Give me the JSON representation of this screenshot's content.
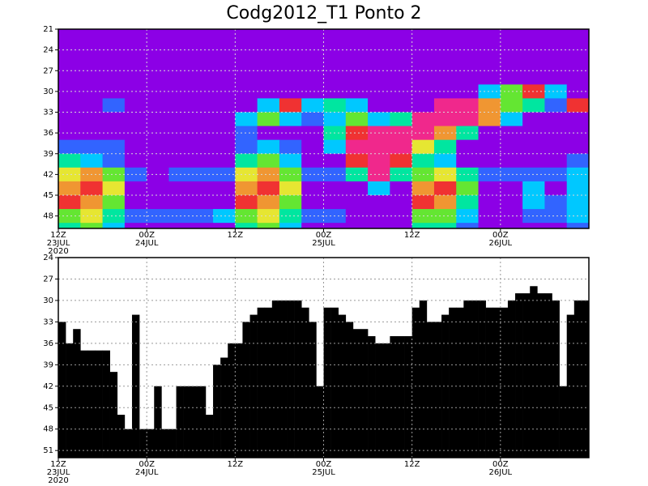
{
  "chart_data": [
    {
      "type": "heatmap",
      "title": "Codg2012_T1 Ponto 2",
      "categories": [
        "12Z\n23JUL\n2020",
        null,
        null,
        null,
        "00Z\n24JUL",
        null,
        null,
        null,
        "12Z",
        null,
        null,
        null,
        "00Z\n25JUL",
        null,
        null,
        null,
        "12Z",
        null,
        null,
        null,
        "00Z\n26JUL",
        null,
        null,
        null
      ],
      "y": [
        21,
        23,
        25,
        27,
        29,
        31,
        33,
        35,
        37,
        39,
        41,
        43,
        45,
        47,
        49
      ],
      "z": [
        [
          0,
          0,
          0,
          0,
          0,
          0,
          0,
          0,
          0,
          0,
          0,
          0,
          0,
          0,
          0,
          0,
          0,
          0,
          0,
          0,
          0,
          0,
          0,
          0
        ],
        [
          0,
          0,
          0,
          0,
          0,
          0,
          0,
          0,
          0,
          0,
          0,
          0,
          0,
          0,
          0,
          0,
          0,
          0,
          0,
          0,
          0,
          0,
          0,
          0
        ],
        [
          0,
          0,
          0,
          0,
          0,
          0,
          0,
          0,
          0,
          0,
          0,
          0,
          0,
          0,
          0,
          0,
          0,
          0,
          0,
          0,
          0,
          0,
          0,
          0
        ],
        [
          0,
          0,
          0,
          0,
          0,
          0,
          0,
          0,
          0,
          0,
          0,
          0,
          0,
          0,
          0,
          0,
          0,
          0,
          0,
          0,
          0,
          0,
          0,
          0
        ],
        [
          0,
          0,
          0,
          0,
          0,
          0,
          0,
          0,
          0,
          0,
          0,
          0,
          0,
          0,
          0,
          0,
          0,
          0,
          0,
          2,
          4,
          7,
          2,
          0
        ],
        [
          0,
          0,
          1,
          0,
          0,
          0,
          0,
          0,
          0,
          2,
          7,
          2,
          3,
          2,
          0,
          0,
          0,
          8,
          8,
          6,
          4,
          3,
          1,
          7
        ],
        [
          0,
          0,
          0,
          0,
          0,
          0,
          0,
          0,
          2,
          4,
          2,
          1,
          2,
          4,
          2,
          3,
          8,
          8,
          8,
          6,
          2,
          0,
          0,
          0
        ],
        [
          0,
          0,
          0,
          0,
          0,
          0,
          0,
          0,
          1,
          0,
          0,
          0,
          3,
          7,
          8,
          8,
          8,
          6,
          3,
          0,
          0,
          0,
          0,
          0
        ],
        [
          1,
          1,
          1,
          0,
          0,
          0,
          0,
          0,
          1,
          2,
          1,
          0,
          2,
          8,
          8,
          8,
          5,
          3,
          0,
          0,
          0,
          0,
          0,
          0
        ],
        [
          3,
          2,
          1,
          0,
          0,
          0,
          0,
          0,
          3,
          4,
          2,
          0,
          0,
          7,
          8,
          7,
          3,
          2,
          0,
          0,
          0,
          0,
          0,
          1
        ],
        [
          5,
          6,
          4,
          1,
          0,
          1,
          1,
          1,
          5,
          6,
          4,
          1,
          1,
          3,
          8,
          3,
          4,
          5,
          3,
          1,
          1,
          1,
          1,
          2
        ],
        [
          6,
          7,
          5,
          0,
          0,
          0,
          0,
          0,
          6,
          7,
          5,
          0,
          0,
          0,
          2,
          0,
          6,
          7,
          4,
          0,
          0,
          2,
          0,
          2
        ],
        [
          7,
          6,
          4,
          0,
          0,
          0,
          0,
          0,
          7,
          6,
          4,
          0,
          0,
          0,
          0,
          0,
          7,
          6,
          3,
          0,
          0,
          2,
          1,
          2
        ],
        [
          4,
          5,
          3,
          1,
          1,
          1,
          1,
          2,
          4,
          5,
          3,
          1,
          1,
          0,
          0,
          0,
          4,
          4,
          2,
          0,
          0,
          1,
          1,
          2
        ],
        [
          3,
          4,
          2,
          0,
          0,
          0,
          0,
          0,
          3,
          4,
          2,
          0,
          0,
          0,
          0,
          0,
          3,
          3,
          1,
          0,
          0,
          0,
          0,
          1
        ]
      ],
      "colors": [
        "#8c00e6",
        "#3264ff",
        "#00c8ff",
        "#00e6a0",
        "#64e632",
        "#e6e632",
        "#f09632",
        "#f03232",
        "#f0288c"
      ],
      "ylim": [
        49.8,
        21
      ],
      "yticks": [
        21,
        24,
        27,
        30,
        33,
        36,
        39,
        42,
        45,
        48
      ],
      "grid": true
    },
    {
      "type": "bar",
      "categories": [
        "12Z\n23JUL\n2020",
        null,
        null,
        null,
        null,
        null,
        null,
        null,
        null,
        null,
        null,
        null,
        "00Z\n24JUL",
        null,
        null,
        null,
        null,
        null,
        null,
        null,
        null,
        null,
        null,
        null,
        "12Z",
        null,
        null,
        null,
        null,
        null,
        null,
        null,
        null,
        null,
        null,
        null,
        "00Z\n25JUL",
        null,
        null,
        null,
        null,
        null,
        null,
        null,
        null,
        null,
        null,
        null,
        "12Z",
        null,
        null,
        null,
        null,
        null,
        null,
        null,
        null,
        null,
        null,
        null,
        "00Z\n26JUL",
        null,
        null,
        null,
        null,
        null,
        null,
        null,
        null,
        null,
        null,
        null
      ],
      "values": [
        33,
        36,
        34,
        37,
        37,
        37,
        37,
        40,
        46,
        48,
        32,
        48,
        48,
        42,
        48,
        48,
        42,
        42,
        42,
        42,
        46,
        39,
        38,
        36,
        36,
        33,
        32,
        31,
        31,
        30,
        30,
        30,
        30,
        31,
        33,
        42,
        31,
        31,
        32,
        33,
        34,
        34,
        35,
        36,
        36,
        35,
        35,
        35,
        31,
        30,
        33,
        33,
        32,
        31,
        31,
        30,
        30,
        30,
        31,
        31,
        31,
        30,
        29,
        29,
        28,
        29,
        29,
        30,
        42,
        32,
        30,
        30
      ],
      "color": "#000000",
      "ylim": [
        52,
        24
      ],
      "yticks": [
        24,
        27,
        30,
        33,
        36,
        39,
        42,
        45,
        48,
        51
      ],
      "grid": true
    }
  ]
}
